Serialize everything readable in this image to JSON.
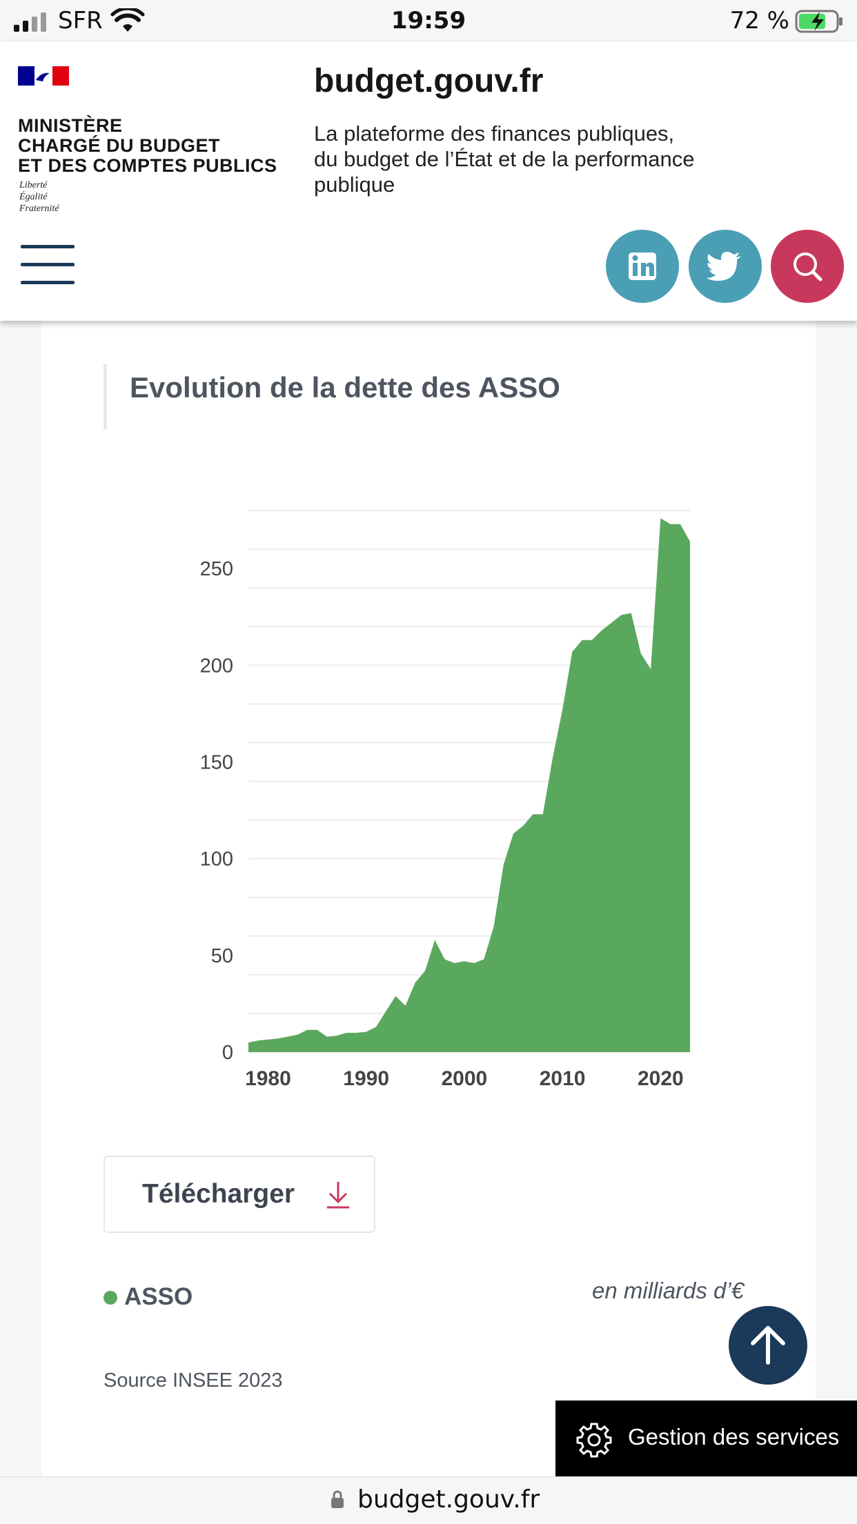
{
  "status_bar": {
    "carrier": "SFR",
    "time": "19:59",
    "battery": "72 %"
  },
  "header": {
    "ministry": "MINISTÈRE\nCHARGÉ DU BUDGET\nET DES COMPTES PUBLICS",
    "motto": "Liberté\nÉgalité\nFraternité",
    "site_title": "budget.gouv.fr",
    "tagline": "La plateforme des finances publiques,\ndu budget de l’État et de la performance\npublique",
    "icons": {
      "menu": "hamburger-icon",
      "linkedin": "linkedin-icon",
      "twitter": "twitter-icon",
      "search": "search-icon"
    }
  },
  "card": {
    "title": "Evolution de la dette des ASSO",
    "download_label": "Télécharger",
    "legend_label": "ASSO",
    "unit": "en milliards d’€",
    "source": "Source INSEE 2023"
  },
  "chart_data": {
    "type": "area",
    "title": "Evolution de la dette des ASSO",
    "xlabel": "",
    "ylabel": "",
    "xlim": [
      1978,
      2023
    ],
    "ylim": [
      0,
      280
    ],
    "x_ticks": [
      1980,
      1990,
      2000,
      2010,
      2020
    ],
    "y_ticks": [
      0,
      50,
      100,
      150,
      200,
      250
    ],
    "grid": true,
    "legend": "bottom-left",
    "color": "#5aa85e",
    "series": [
      {
        "name": "ASSO",
        "x": [
          1978,
          1979,
          1980,
          1981,
          1982,
          1983,
          1984,
          1985,
          1986,
          1987,
          1988,
          1989,
          1990,
          1991,
          1992,
          1993,
          1994,
          1995,
          1996,
          1997,
          1998,
          1999,
          2000,
          2001,
          2002,
          2003,
          2004,
          2005,
          2006,
          2007,
          2008,
          2009,
          2010,
          2011,
          2012,
          2013,
          2014,
          2015,
          2016,
          2017,
          2018,
          2019,
          2020,
          2021,
          2022,
          2023
        ],
        "values": [
          5,
          6,
          6.5,
          7,
          8,
          9,
          11.5,
          11.5,
          8,
          8.5,
          10,
          10,
          10.5,
          13,
          21,
          29,
          24,
          36,
          42,
          58,
          48,
          46,
          47,
          46,
          48,
          65,
          97,
          113,
          117,
          123,
          123,
          152,
          177,
          207,
          213,
          213,
          218,
          222,
          226,
          227,
          206,
          198,
          276,
          273,
          273,
          264
        ]
      }
    ]
  },
  "services": {
    "label": "Gestion des services",
    "icon": "gear-icon"
  },
  "back_to_top_icon": "arrow-up-icon",
  "url_bar": {
    "url": "budget.gouv.fr",
    "icon": "lock-icon"
  }
}
